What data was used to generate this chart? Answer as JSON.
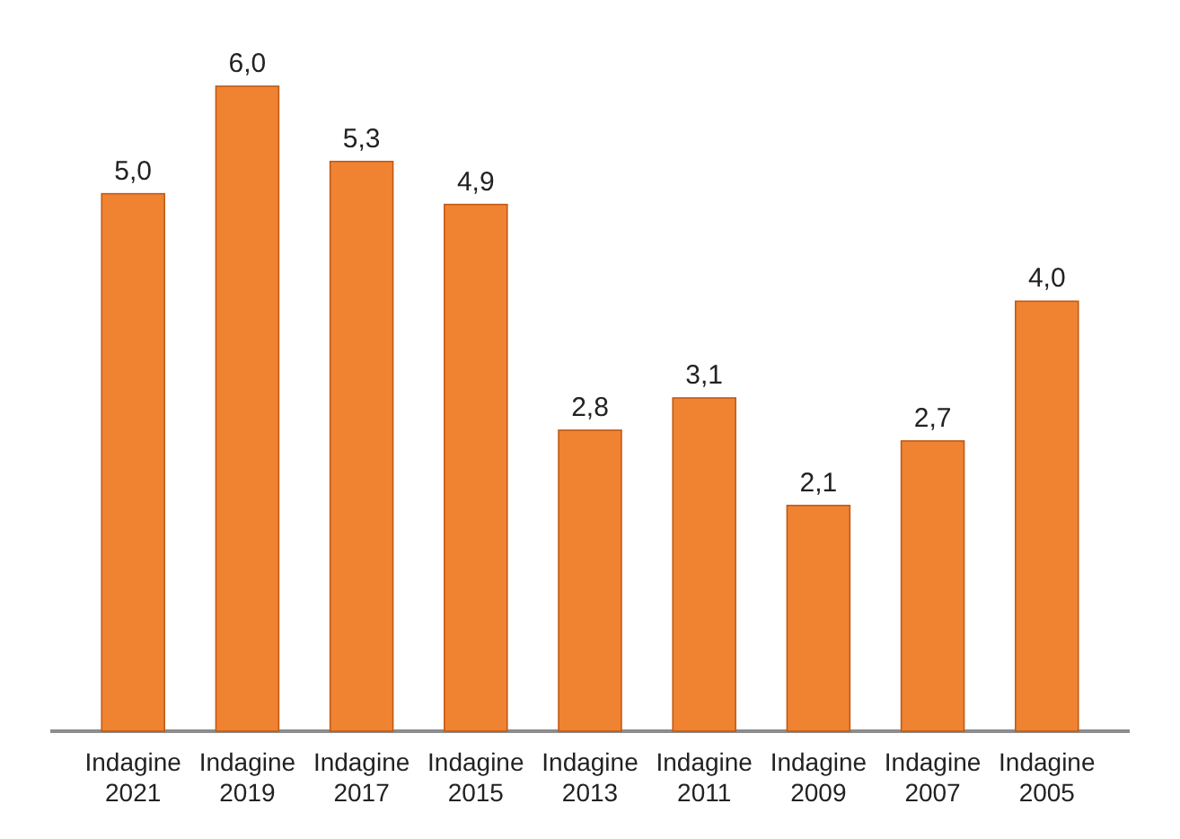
{
  "chart_data": {
    "type": "bar",
    "categories": [
      "Indagine 2021",
      "Indagine 2019",
      "Indagine 2017",
      "Indagine 2015",
      "Indagine 2013",
      "Indagine 2011",
      "Indagine 2009",
      "Indagine 2007",
      "Indagine 2005"
    ],
    "values": [
      5.0,
      6.0,
      5.3,
      4.9,
      2.8,
      3.1,
      2.1,
      2.7,
      4.0
    ],
    "value_labels": [
      "5,0",
      "6,0",
      "5,3",
      "4,9",
      "2,8",
      "3,1",
      "2,1",
      "2,7",
      "4,0"
    ],
    "color": "#f08331"
  }
}
